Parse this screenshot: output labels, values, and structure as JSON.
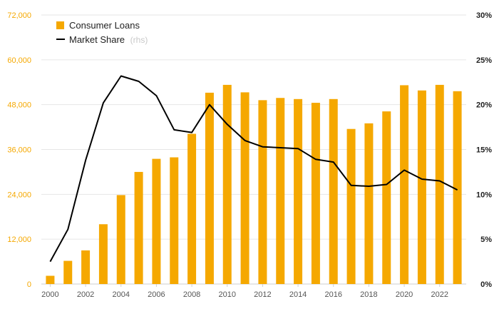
{
  "chart_data": {
    "type": "bar",
    "x": [
      2000,
      2001,
      2002,
      2003,
      2004,
      2005,
      2006,
      2007,
      2008,
      2009,
      2010,
      2011,
      2012,
      2013,
      2014,
      2015,
      2016,
      2017,
      2018,
      2019,
      2020,
      2021,
      2022,
      2023
    ],
    "x_tick_labels": [
      "2000",
      "2002",
      "2004",
      "2006",
      "2008",
      "2010",
      "2012",
      "2014",
      "2016",
      "2018",
      "2020",
      "2022"
    ],
    "series": [
      {
        "name": "Consumer Loans",
        "type": "bar",
        "axis": "left",
        "color": "#f5a800",
        "values": [
          2200,
          6200,
          9000,
          16000,
          23800,
          30000,
          33500,
          33900,
          40200,
          51200,
          53300,
          51300,
          49200,
          49800,
          49500,
          48500,
          49500,
          41500,
          43000,
          46200,
          53200,
          51800,
          53300,
          51600
        ]
      },
      {
        "name": "Market Share",
        "name_suffix": "(rhs)",
        "type": "line",
        "axis": "right",
        "color": "#000000",
        "values": [
          2.5,
          6.1,
          13.8,
          20.2,
          23.2,
          22.6,
          21.0,
          17.2,
          16.9,
          20.0,
          17.8,
          16.0,
          15.3,
          15.2,
          15.1,
          13.9,
          13.6,
          11.0,
          10.9,
          11.1,
          12.7,
          11.7,
          11.5,
          10.5
        ]
      }
    ],
    "left_axis": {
      "min": 0,
      "max": 72000,
      "ticks": [
        "0",
        "12,000",
        "24,000",
        "36,000",
        "48,000",
        "60,000",
        "72,000"
      ],
      "color": "#f5a800"
    },
    "right_axis": {
      "min": 0,
      "max": 30,
      "ticks": [
        "0%",
        "5%",
        "10%",
        "15%",
        "20%",
        "25%",
        "30%"
      ]
    },
    "grid": true,
    "legend_position": "top-left"
  }
}
